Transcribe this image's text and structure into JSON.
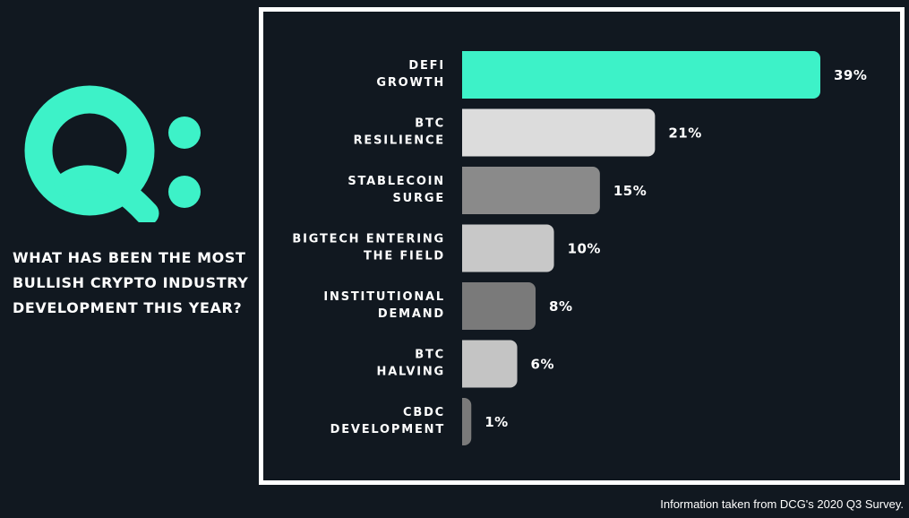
{
  "question": "WHAT HAS BEEN THE MOST BULLISH CRYPTO INDUSTRY DEVELOPMENT THIS YEAR?",
  "footnote": "Information taken from DCG's 2020 Q3 Survey.",
  "colors": {
    "background": "#111820",
    "accent": "#3df2c8",
    "frame": "#ffffff"
  },
  "chart_data": {
    "type": "bar",
    "orientation": "horizontal",
    "categories": [
      [
        "DEFI",
        "GROWTH"
      ],
      [
        "BTC",
        "RESILIENCE"
      ],
      [
        "STABLECOIN",
        "SURGE"
      ],
      [
        "BIGTECH ENTERING",
        "THE FIELD"
      ],
      [
        "INSTITUTIONAL",
        "DEMAND"
      ],
      [
        "BTC",
        "HALVING"
      ],
      [
        "CBDC",
        "DEVELOPMENT"
      ]
    ],
    "values": [
      39,
      21,
      15,
      10,
      8,
      6,
      1
    ],
    "value_labels": [
      "39%",
      "21%",
      "15%",
      "10%",
      "8%",
      "6%",
      "1%"
    ],
    "bar_colors": [
      "#3df2c8",
      "#dcdcdc",
      "#8a8a8a",
      "#c8c8c8",
      "#7a7a7a",
      "#c4c4c4",
      "#7a7a7a"
    ],
    "xlim": [
      0,
      39
    ],
    "grid": false,
    "legend": "none"
  }
}
